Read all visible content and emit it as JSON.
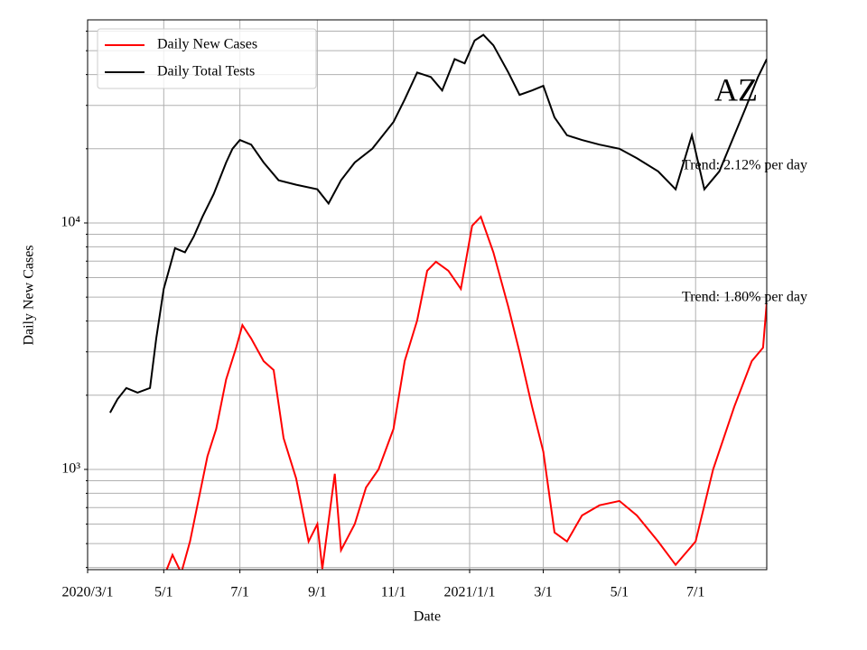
{
  "chart_data": {
    "type": "line",
    "x_label": "Date",
    "y_label": "Daily New Cases",
    "xlim": [
      "2020-03-01",
      "2021-08-27"
    ],
    "xticks": [
      {
        "value": "2020-03-01",
        "label": "2020/3/1"
      },
      {
        "value": "2020-05-01",
        "label": "5/1"
      },
      {
        "value": "2020-07-01",
        "label": "7/1"
      },
      {
        "value": "2020-09-01",
        "label": "9/1"
      },
      {
        "value": "2020-11-01",
        "label": "11/1"
      },
      {
        "value": "2021-01-01",
        "label": "2021/1/1"
      },
      {
        "value": "2021-03-01",
        "label": "3/1"
      },
      {
        "value": "2021-05-01",
        "label": "5/1"
      },
      {
        "value": "2021-07-01",
        "label": "7/1"
      }
    ],
    "ylim": [
      392,
      66700
    ],
    "y_scale": "log",
    "yticks": [
      {
        "value": 1000,
        "label": "10³"
      },
      {
        "value": 10000,
        "label": "10⁴"
      }
    ],
    "minor_yticks": [
      400,
      500,
      600,
      700,
      800,
      900,
      2000,
      3000,
      4000,
      5000,
      6000,
      7000,
      8000,
      9000,
      20000,
      30000,
      40000,
      50000,
      60000
    ],
    "grid": true,
    "legend_loc": "upper left",
    "series": [
      {
        "name": "Daily New Cases",
        "color": "#ff0000",
        "x": [
          "2020-05-01",
          "2020-05-08",
          "2020-05-15",
          "2020-05-22",
          "2020-05-28",
          "2020-06-05",
          "2020-06-12",
          "2020-06-20",
          "2020-06-28",
          "2020-07-03",
          "2020-07-10",
          "2020-07-20",
          "2020-07-28",
          "2020-08-05",
          "2020-08-15",
          "2020-08-25",
          "2020-09-01",
          "2020-09-05",
          "2020-09-15",
          "2020-09-20",
          "2020-10-01",
          "2020-10-10",
          "2020-10-20",
          "2020-11-01",
          "2020-11-10",
          "2020-11-20",
          "2020-11-28",
          "2020-12-05",
          "2020-12-15",
          "2020-12-25",
          "2021-01-03",
          "2021-01-10",
          "2021-01-20",
          "2021-02-01",
          "2021-02-10",
          "2021-02-20",
          "2021-03-01",
          "2021-03-10",
          "2021-03-20",
          "2021-04-01",
          "2021-04-15",
          "2021-05-01",
          "2021-05-15",
          "2021-06-01",
          "2021-06-15",
          "2021-07-01",
          "2021-07-15",
          "2021-08-01",
          "2021-08-15",
          "2021-08-24",
          "2021-08-27"
        ],
        "values": [
          365,
          450,
          380,
          510,
          715,
          1130,
          1460,
          2320,
          3120,
          3850,
          3400,
          2750,
          2530,
          1340,
          920,
          510,
          600,
          395,
          960,
          470,
          600,
          845,
          1000,
          1460,
          2750,
          4020,
          6400,
          6960,
          6400,
          5400,
          9750,
          10600,
          7600,
          4560,
          2990,
          1800,
          1180,
          555,
          510,
          650,
          715,
          745,
          650,
          510,
          410,
          510,
          1000,
          1800,
          2750,
          3120,
          4760
        ]
      },
      {
        "name": "Daily Total Tests",
        "color": "#000000",
        "x": [
          "2020-03-19",
          "2020-03-25",
          "2020-04-01",
          "2020-04-10",
          "2020-04-20",
          "2020-04-25",
          "2020-05-01",
          "2020-05-05",
          "2020-05-10",
          "2020-05-18",
          "2020-05-25",
          "2020-06-01",
          "2020-06-10",
          "2020-06-20",
          "2020-06-25",
          "2020-07-01",
          "2020-07-10",
          "2020-07-20",
          "2020-08-01",
          "2020-08-15",
          "2020-09-01",
          "2020-09-10",
          "2020-09-20",
          "2020-10-01",
          "2020-10-15",
          "2020-11-01",
          "2020-11-10",
          "2020-11-20",
          "2020-12-01",
          "2020-12-10",
          "2020-12-20",
          "2020-12-28",
          "2021-01-05",
          "2021-01-12",
          "2021-01-20",
          "2021-02-01",
          "2021-02-10",
          "2021-02-20",
          "2021-03-01",
          "2021-03-10",
          "2021-03-20",
          "2021-04-01",
          "2021-04-15",
          "2021-05-01",
          "2021-05-15",
          "2021-06-01",
          "2021-06-15",
          "2021-06-28",
          "2021-07-08",
          "2021-07-20",
          "2021-08-01",
          "2021-08-10",
          "2021-08-20",
          "2021-08-27"
        ],
        "values": [
          1700,
          1930,
          2140,
          2050,
          2140,
          3400,
          5400,
          6400,
          7900,
          7600,
          8800,
          10600,
          13100,
          17600,
          20000,
          21700,
          20800,
          17600,
          14900,
          14300,
          13700,
          12000,
          14900,
          17600,
          20000,
          25700,
          31700,
          40800,
          39100,
          34500,
          46200,
          44400,
          55000,
          58000,
          52600,
          40800,
          33100,
          34500,
          36000,
          26800,
          22700,
          21700,
          20800,
          20000,
          18300,
          16200,
          13700,
          22700,
          13700,
          16200,
          22700,
          29200,
          39100,
          46200
        ]
      }
    ],
    "annotations": [
      "AZ",
      "Trend: 2.12% per day",
      "Trend: 1.80% per day"
    ]
  }
}
